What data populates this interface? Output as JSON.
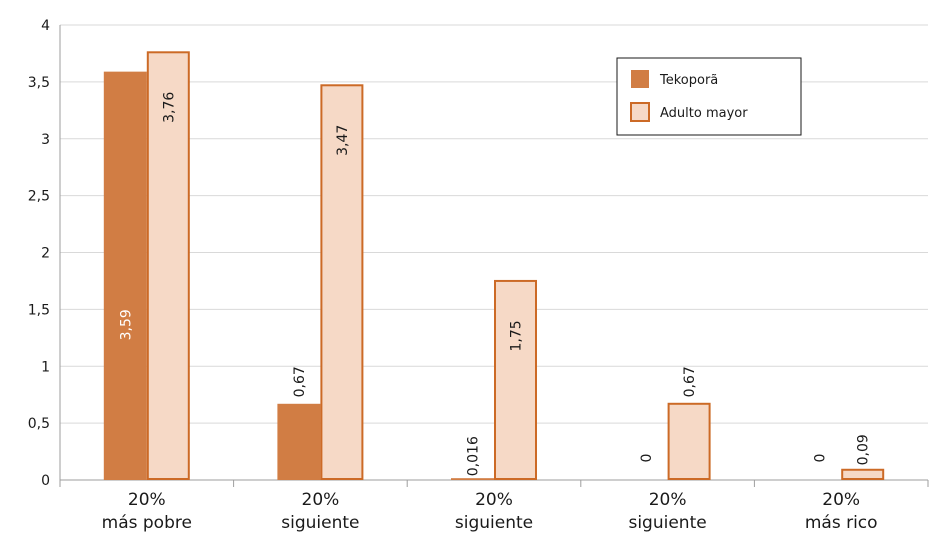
{
  "chart_data": {
    "type": "bar",
    "categories": [
      [
        "20%",
        "más pobre"
      ],
      [
        "20%",
        "siguiente"
      ],
      [
        "20%",
        "siguiente"
      ],
      [
        "20%",
        "siguiente"
      ],
      [
        "20%",
        "más rico"
      ]
    ],
    "series": [
      {
        "name": "Tekoporã",
        "values": [
          3.59,
          0.67,
          0.016,
          0,
          0
        ],
        "labels": [
          "3,59",
          "0,67",
          "0,016",
          "0",
          "0"
        ],
        "fill": "#d17d44",
        "stroke": "#d17d44",
        "label_color": "#ffffff"
      },
      {
        "name": "Adulto mayor",
        "values": [
          3.76,
          3.47,
          1.75,
          0.67,
          0.09
        ],
        "labels": [
          "3,76",
          "3,47",
          "1,75",
          "0,67",
          "0,09"
        ],
        "fill": "#f6d9c6",
        "stroke": "#cc6a26",
        "label_color": "#1a1a1a"
      }
    ],
    "ylim": [
      0,
      4
    ],
    "yticks": [
      {
        "value": 0,
        "label": "0"
      },
      {
        "value": 0.5,
        "label": "0,5"
      },
      {
        "value": 1,
        "label": "1"
      },
      {
        "value": 1.5,
        "label": "1,5"
      },
      {
        "value": 2,
        "label": "2"
      },
      {
        "value": 2.5,
        "label": "2,5"
      },
      {
        "value": 3,
        "label": "3"
      },
      {
        "value": 3.5,
        "label": "3,5"
      },
      {
        "value": 4,
        "label": "4"
      }
    ],
    "grid": true,
    "grid_color": "#d9d9d9",
    "legend": "top-right",
    "title": "",
    "xlabel": "",
    "ylabel": ""
  }
}
